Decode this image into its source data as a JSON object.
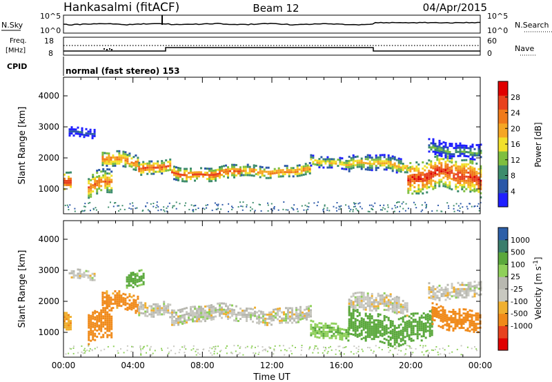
{
  "header": {
    "station": "Hankasalmi (fitACF)",
    "beam": "Beam 12",
    "date": "04/Apr/2015"
  },
  "status_panels": {
    "nsky_label": "N.Sky",
    "nsearch_label": "N.Search",
    "noise_ticks": [
      "10^5",
      "10^0"
    ],
    "freq_label_line1": "Freq.",
    "freq_label_line2": "[MHz]",
    "freq_ticks": [
      "18",
      "8"
    ],
    "nave_label": "Nave",
    "nave_ticks": [
      "60",
      "0"
    ],
    "cpid_label": "CPID",
    "cpid_value": "normal (fast stereo) 153"
  },
  "colors": {
    "power": [
      "#1f1fff",
      "#2b58a8",
      "#3d8c6c",
      "#7fbf3f",
      "#f2e02a",
      "#f5a623",
      "#f07a1a",
      "#e8421e",
      "#e00000"
    ],
    "velocity": [
      "#e00000",
      "#e8421e",
      "#f08a1a",
      "#f0b030",
      "#c8c8c0",
      "#b8b8b0",
      "#8fd05a",
      "#5aa83c",
      "#3a7d6c",
      "#2d5fa8",
      "#1f3fd0"
    ]
  },
  "chart_data": [
    {
      "type": "heatmap",
      "title": "",
      "xlabel": "Time UT",
      "ylabel": "Slant Range [km]",
      "x_ticks": [
        "00:00",
        "04:00",
        "08:00",
        "12:00",
        "16:00",
        "20:00",
        "00:00"
      ],
      "x_hours": [
        0,
        4,
        8,
        12,
        16,
        20,
        24
      ],
      "xlim": [
        0,
        24
      ],
      "y_ticks": [
        1000,
        2000,
        3000,
        4000
      ],
      "ylim": [
        200,
        4600
      ],
      "colorbar": {
        "label": "Power [dB]",
        "ticks": [
          4,
          8,
          12,
          16,
          20,
          24,
          28
        ],
        "range": [
          0,
          32
        ]
      },
      "bands": [
        {
          "t_start": 0.0,
          "t_end": 0.4,
          "range_center": 1200,
          "range_width": 300,
          "level": 28
        },
        {
          "t_start": 0.3,
          "t_end": 1.8,
          "range_center": 2850,
          "range_width": 150,
          "level": 8
        },
        {
          "t_start": 1.4,
          "t_end": 2.8,
          "range_center": 1200,
          "range_width": 400,
          "level": 24
        },
        {
          "t_start": 2.2,
          "t_end": 4.3,
          "range_center": 1950,
          "range_width": 250,
          "level": 24
        },
        {
          "t_start": 4.3,
          "t_end": 6.2,
          "range_center": 1700,
          "range_width": 200,
          "level": 26
        },
        {
          "t_start": 6.2,
          "t_end": 10.2,
          "range_center": 1550,
          "range_width": 200,
          "level": 26
        },
        {
          "t_start": 10.2,
          "t_end": 14.2,
          "range_center": 1620,
          "range_width": 180,
          "level": 24
        },
        {
          "t_start": 14.2,
          "t_end": 16.4,
          "range_center": 1900,
          "range_width": 180,
          "level": 20
        },
        {
          "t_start": 16.4,
          "t_end": 19.8,
          "range_center": 1800,
          "range_width": 250,
          "level": 20
        },
        {
          "t_start": 19.8,
          "t_end": 24.0,
          "range_center": 1400,
          "range_width": 500,
          "level": 28
        },
        {
          "t_start": 21.0,
          "t_end": 24.0,
          "range_center": 2300,
          "range_width": 250,
          "level": 12
        }
      ]
    },
    {
      "type": "heatmap",
      "title": "",
      "xlabel": "Time UT",
      "ylabel": "Slant Range [km]",
      "x_ticks": [
        "00:00",
        "04:00",
        "08:00",
        "12:00",
        "16:00",
        "20:00",
        "00:00"
      ],
      "x_hours": [
        0,
        4,
        8,
        12,
        16,
        20,
        24
      ],
      "xlim": [
        0,
        24
      ],
      "y_ticks": [
        1000,
        2000,
        3000,
        4000
      ],
      "ylim": [
        200,
        4600
      ],
      "colorbar": {
        "label": "Velocity [m s^-1]",
        "ticks": [
          "1000",
          "500",
          "100",
          "25",
          "-25",
          "-100",
          "-500",
          "-1000"
        ]
      },
      "bands": [
        {
          "t_start": 0.0,
          "t_end": 0.4,
          "range_center": 1300,
          "range_width": 300,
          "velocity": -100
        },
        {
          "t_start": 0.3,
          "t_end": 1.8,
          "range_center": 2900,
          "range_width": 150,
          "velocity": 0
        },
        {
          "t_start": 1.4,
          "t_end": 2.8,
          "range_center": 1300,
          "range_width": 500,
          "velocity": -200
        },
        {
          "t_start": 2.2,
          "t_end": 4.3,
          "range_center": 2000,
          "range_width": 300,
          "velocity": -150
        },
        {
          "t_start": 3.6,
          "t_end": 4.6,
          "range_center": 2800,
          "range_width": 250,
          "velocity": 150
        },
        {
          "t_start": 4.3,
          "t_end": 6.2,
          "range_center": 1700,
          "range_width": 250,
          "velocity": 0
        },
        {
          "t_start": 6.2,
          "t_end": 14.2,
          "range_center": 1600,
          "range_width": 250,
          "velocity": 0
        },
        {
          "t_start": 14.2,
          "t_end": 16.4,
          "range_center": 1100,
          "range_width": 250,
          "velocity": 100
        },
        {
          "t_start": 16.4,
          "t_end": 19.8,
          "range_center": 1900,
          "range_width": 300,
          "velocity": 0
        },
        {
          "t_start": 16.4,
          "t_end": 21.2,
          "range_center": 1200,
          "range_width": 450,
          "velocity": 200
        },
        {
          "t_start": 21.2,
          "t_end": 24.0,
          "range_center": 1500,
          "range_width": 350,
          "velocity": -300
        },
        {
          "t_start": 21.0,
          "t_end": 24.0,
          "range_center": 2400,
          "range_width": 250,
          "velocity": 0
        }
      ]
    }
  ]
}
